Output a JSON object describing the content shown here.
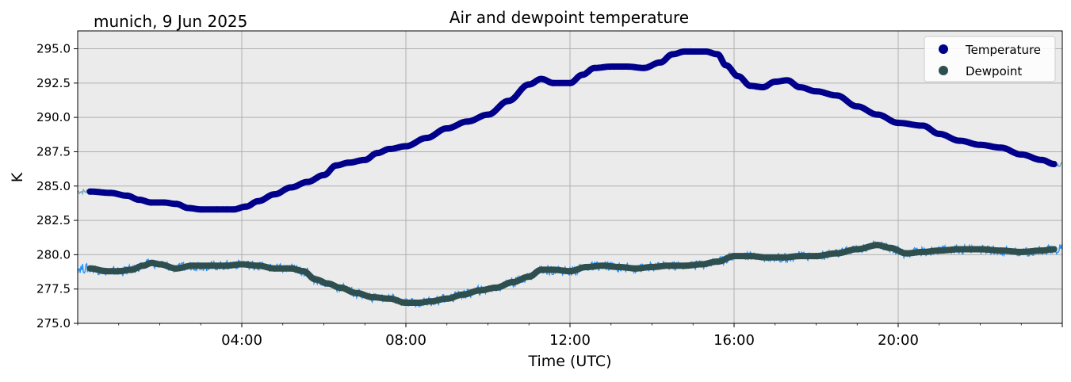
{
  "chart_data": {
    "type": "line",
    "title": "Air and dewpoint temperature",
    "subtitle": "munich, 9 Jun 2025",
    "xlabel": "Time (UTC)",
    "ylabel": "K",
    "xlim": [
      0,
      24
    ],
    "ylim": [
      275,
      296.3
    ],
    "x_ticks": [
      {
        "value": 4,
        "label": "04:00"
      },
      {
        "value": 8,
        "label": "08:00"
      },
      {
        "value": 12,
        "label": "12:00"
      },
      {
        "value": 16,
        "label": "16:00"
      },
      {
        "value": 20,
        "label": "20:00"
      },
      {
        "value": 24,
        "label": ""
      }
    ],
    "y_ticks": [
      {
        "value": 275.0,
        "label": "275.0"
      },
      {
        "value": 277.5,
        "label": "277.5"
      },
      {
        "value": 280.0,
        "label": "280.0"
      },
      {
        "value": 282.5,
        "label": "282.5"
      },
      {
        "value": 285.0,
        "label": "285.0"
      },
      {
        "value": 287.5,
        "label": "287.5"
      },
      {
        "value": 290.0,
        "label": "290.0"
      },
      {
        "value": 292.5,
        "label": "292.5"
      },
      {
        "value": 295.0,
        "label": "295.0"
      }
    ],
    "grid": true,
    "legend_position": "top-right",
    "colors": {
      "plot_background": "#ebebeb",
      "grid": "#b0b0b0",
      "temperature": "#00008b",
      "temperature_raw": "#6fa3b3",
      "dewpoint": "#2f4f4f",
      "dewpoint_raw": "#1e90ff"
    },
    "series": [
      {
        "name": "Temperature",
        "color": "#00008b",
        "x": [
          0.3,
          0.8,
          1.2,
          1.5,
          1.8,
          2.1,
          2.4,
          2.7,
          3.0,
          3.4,
          3.8,
          4.1,
          4.4,
          4.8,
          5.2,
          5.6,
          6.0,
          6.3,
          6.6,
          7.0,
          7.3,
          7.6,
          8.0,
          8.5,
          9.0,
          9.5,
          10.0,
          10.5,
          11.0,
          11.3,
          11.6,
          12.0,
          12.3,
          12.6,
          13.0,
          13.4,
          13.8,
          14.2,
          14.5,
          14.8,
          15.0,
          15.3,
          15.6,
          15.8,
          16.1,
          16.4,
          16.7,
          17.0,
          17.3,
          17.6,
          18.0,
          18.5,
          19.0,
          19.5,
          20.0,
          20.6,
          21.0,
          21.5,
          22.0,
          22.5,
          23.0,
          23.5,
          23.8
        ],
        "y": [
          284.6,
          284.5,
          284.3,
          284.0,
          283.8,
          283.8,
          283.7,
          283.4,
          283.3,
          283.3,
          283.3,
          283.5,
          283.9,
          284.4,
          284.9,
          285.3,
          285.8,
          286.5,
          286.7,
          286.9,
          287.4,
          287.7,
          287.9,
          288.5,
          289.2,
          289.7,
          290.2,
          291.2,
          292.4,
          292.8,
          292.5,
          292.5,
          293.1,
          293.6,
          293.7,
          293.7,
          293.6,
          294.0,
          294.6,
          294.8,
          294.8,
          294.8,
          294.6,
          293.8,
          293.0,
          292.3,
          292.2,
          292.6,
          292.7,
          292.2,
          291.9,
          291.6,
          290.8,
          290.2,
          289.6,
          289.4,
          288.8,
          288.3,
          288.0,
          287.8,
          287.3,
          286.9,
          286.6
        ]
      },
      {
        "name": "Dewpoint",
        "color": "#2f4f4f",
        "x": [
          0.3,
          0.7,
          1.0,
          1.3,
          1.6,
          1.8,
          2.0,
          2.4,
          2.8,
          3.2,
          3.6,
          4.0,
          4.4,
          4.8,
          5.2,
          5.5,
          5.8,
          6.1,
          6.4,
          6.8,
          7.2,
          7.6,
          8.0,
          8.3,
          8.6,
          9.0,
          9.4,
          9.8,
          10.2,
          10.6,
          11.0,
          11.3,
          11.6,
          12.0,
          12.4,
          12.8,
          13.2,
          13.6,
          14.0,
          14.4,
          14.8,
          15.2,
          15.6,
          16.0,
          16.4,
          16.8,
          17.2,
          17.6,
          18.0,
          18.5,
          19.0,
          19.5,
          19.8,
          20.2,
          20.6,
          21.0,
          21.5,
          22.0,
          22.5,
          23.0,
          23.5,
          23.8
        ],
        "y": [
          279.0,
          278.8,
          278.8,
          278.9,
          279.2,
          279.4,
          279.3,
          279.0,
          279.2,
          279.2,
          279.2,
          279.3,
          279.2,
          279.0,
          279.0,
          278.8,
          278.2,
          277.9,
          277.6,
          277.2,
          276.9,
          276.8,
          276.5,
          276.5,
          276.6,
          276.8,
          277.1,
          277.4,
          277.6,
          278.0,
          278.4,
          278.9,
          278.9,
          278.8,
          279.1,
          279.2,
          279.1,
          279.0,
          279.1,
          279.2,
          279.2,
          279.3,
          279.5,
          279.9,
          279.9,
          279.8,
          279.8,
          279.9,
          279.9,
          280.1,
          280.4,
          280.7,
          280.5,
          280.1,
          280.2,
          280.3,
          280.4,
          280.4,
          280.3,
          280.2,
          280.3,
          280.4
        ]
      }
    ]
  }
}
